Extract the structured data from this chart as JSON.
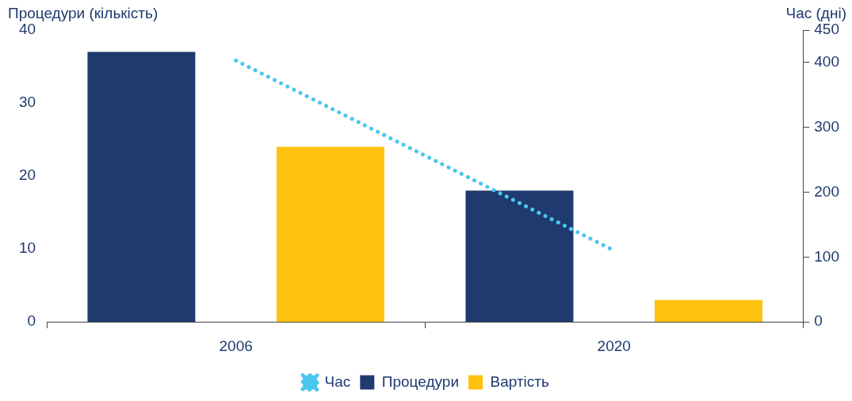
{
  "chart_data": {
    "type": "bar",
    "ylabel": "Процедури (кількість)",
    "y2label": "Час (дні)",
    "categories": [
      "2006",
      "2020"
    ],
    "series": [
      {
        "name": "Процедури",
        "color": "#1f3a6e",
        "values": [
          37,
          18
        ]
      },
      {
        "name": "Вартість",
        "color": "#ffc20e",
        "values": [
          24,
          3
        ]
      },
      {
        "name": "Час",
        "type": "line",
        "axis": "y2",
        "color": "#4cc6ee",
        "line_style": "dotted",
        "marker": "none",
        "values": [
          403,
          110
        ]
      }
    ],
    "ylim": [
      0,
      40
    ],
    "yticks": [
      0,
      10,
      20,
      30,
      40
    ],
    "y2lim": [
      0,
      450
    ],
    "y2ticks": [
      0,
      100,
      200,
      300,
      400,
      450
    ],
    "legend": "bottom"
  }
}
